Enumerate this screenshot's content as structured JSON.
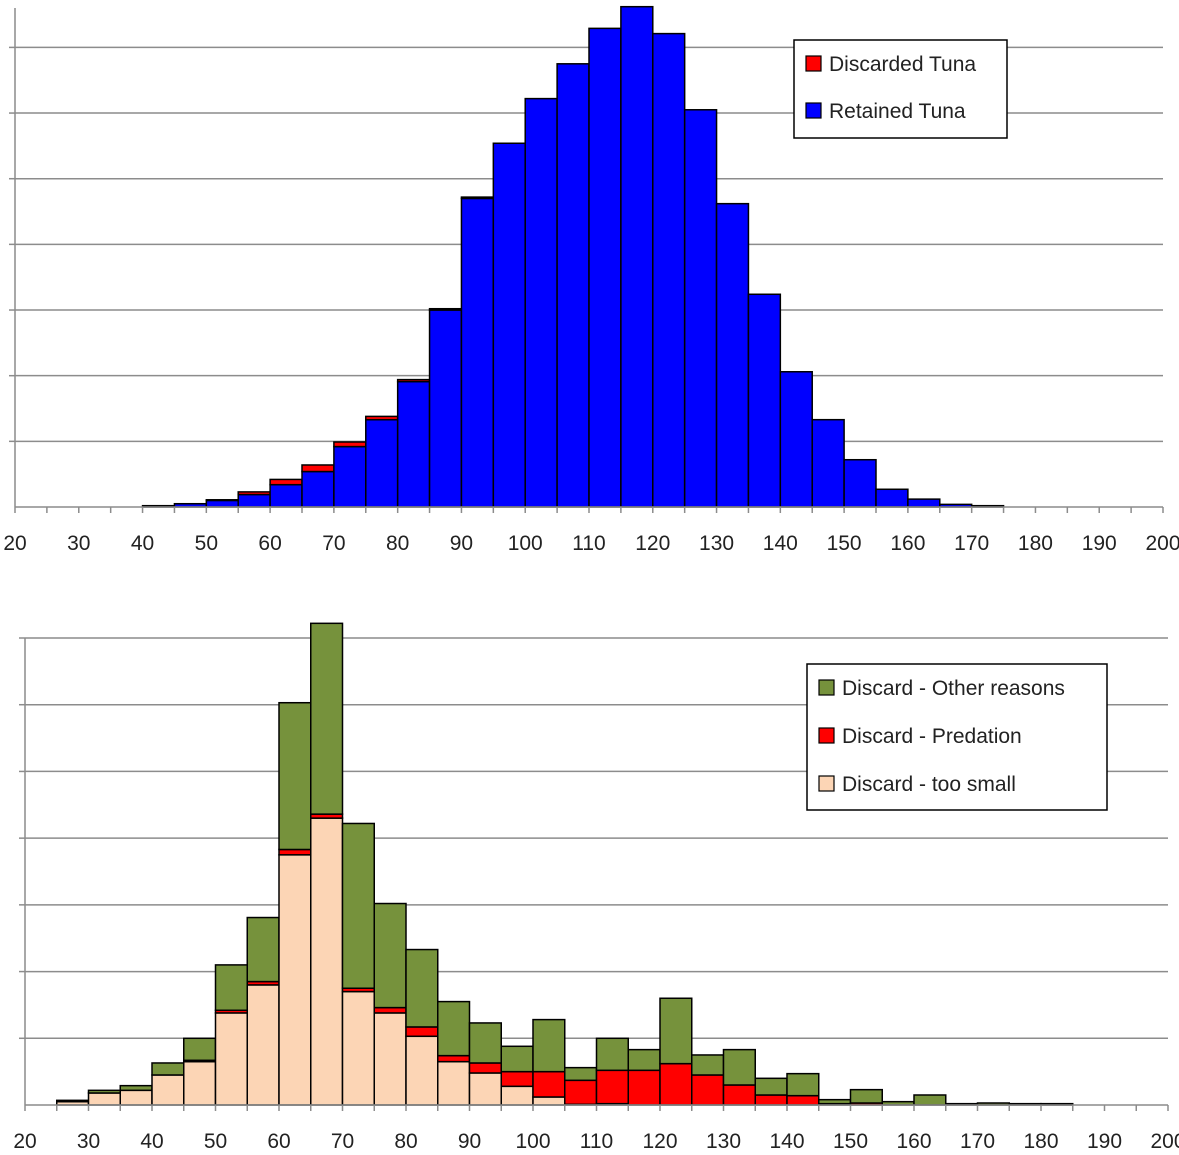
{
  "chart_data": [
    {
      "type": "bar",
      "stacked": true,
      "grid": true,
      "legend_placement": "top-right",
      "xlim": [
        20,
        200
      ],
      "xticks": [
        20,
        30,
        40,
        50,
        60,
        70,
        80,
        90,
        100,
        110,
        120,
        130,
        140,
        150,
        160,
        170,
        180,
        190,
        200
      ],
      "ylim": [
        0,
        7.6
      ],
      "bin_width": 5,
      "bin_starts": [
        20,
        25,
        30,
        35,
        40,
        45,
        50,
        55,
        60,
        65,
        70,
        75,
        80,
        85,
        90,
        95,
        100,
        105,
        110,
        115,
        120,
        125,
        130,
        135,
        140,
        145,
        150,
        155,
        160,
        165,
        170,
        175,
        180,
        185,
        190,
        195
      ],
      "series": [
        {
          "name": "Retained Tuna",
          "color": "#0000ff",
          "values": [
            0,
            0,
            0,
            0,
            0.02,
            0.05,
            0.1,
            0.19,
            0.34,
            0.54,
            0.92,
            1.33,
            1.91,
            3.0,
            4.7,
            5.54,
            6.22,
            6.75,
            7.29,
            7.62,
            7.21,
            6.05,
            4.62,
            3.24,
            2.06,
            1.33,
            0.72,
            0.27,
            0.12,
            0.04,
            0.02,
            0,
            0,
            0,
            0,
            0
          ]
        },
        {
          "name": "Discarded Tuna",
          "color": "#ff0000",
          "values": [
            0,
            0,
            0,
            0,
            0,
            0,
            0.01,
            0.04,
            0.08,
            0.1,
            0.07,
            0.05,
            0.03,
            0.02,
            0.02,
            0,
            0,
            0,
            0,
            0,
            0,
            0,
            0,
            0,
            0,
            0,
            0,
            0,
            0,
            0,
            0,
            0,
            0,
            0,
            0,
            0
          ]
        }
      ]
    },
    {
      "type": "bar",
      "stacked": true,
      "grid": true,
      "legend_placement": "top-right",
      "xlim": [
        20,
        200
      ],
      "xticks": [
        20,
        30,
        40,
        50,
        60,
        70,
        80,
        90,
        100,
        110,
        120,
        130,
        140,
        150,
        160,
        170,
        180,
        190,
        200
      ],
      "ylim": [
        0,
        7
      ],
      "bin_width": 5,
      "bin_starts": [
        20,
        25,
        30,
        35,
        40,
        45,
        50,
        55,
        60,
        65,
        70,
        75,
        80,
        85,
        90,
        95,
        100,
        105,
        110,
        115,
        120,
        125,
        130,
        135,
        140,
        145,
        150,
        155,
        160,
        165,
        170,
        175,
        180,
        185,
        190,
        195
      ],
      "series": [
        {
          "name": "Discard - too small",
          "color": "#fcd5b5",
          "values": [
            0,
            0.05,
            0.18,
            0.22,
            0.45,
            0.65,
            1.38,
            1.8,
            3.75,
            4.3,
            1.7,
            1.38,
            1.03,
            0.65,
            0.48,
            0.28,
            0.12,
            0.01,
            0.02,
            0,
            0,
            0,
            0,
            0,
            0,
            0,
            0,
            0,
            0,
            0,
            0,
            0,
            0,
            0,
            0,
            0
          ]
        },
        {
          "name": "Discard - Predation",
          "color": "#ff0000",
          "values": [
            0,
            0,
            0,
            0,
            0,
            0.02,
            0.04,
            0.05,
            0.08,
            0.06,
            0.05,
            0.08,
            0.14,
            0.09,
            0.15,
            0.22,
            0.38,
            0.36,
            0.5,
            0.52,
            0.62,
            0.45,
            0.3,
            0.15,
            0.14,
            0.02,
            0.03,
            0,
            0,
            0,
            0,
            0,
            0,
            0,
            0,
            0
          ]
        },
        {
          "name": "Discard - Other reasons",
          "color": "#76923c",
          "values": [
            0,
            0.02,
            0.04,
            0.07,
            0.18,
            0.33,
            0.68,
            0.96,
            2.2,
            2.86,
            2.47,
            1.56,
            1.16,
            0.81,
            0.6,
            0.38,
            0.78,
            0.19,
            0.48,
            0.31,
            0.98,
            0.3,
            0.53,
            0.25,
            0.33,
            0.06,
            0.2,
            0.05,
            0.15,
            0.02,
            0.03,
            0.02,
            0.02,
            0,
            0,
            0
          ]
        }
      ]
    }
  ]
}
